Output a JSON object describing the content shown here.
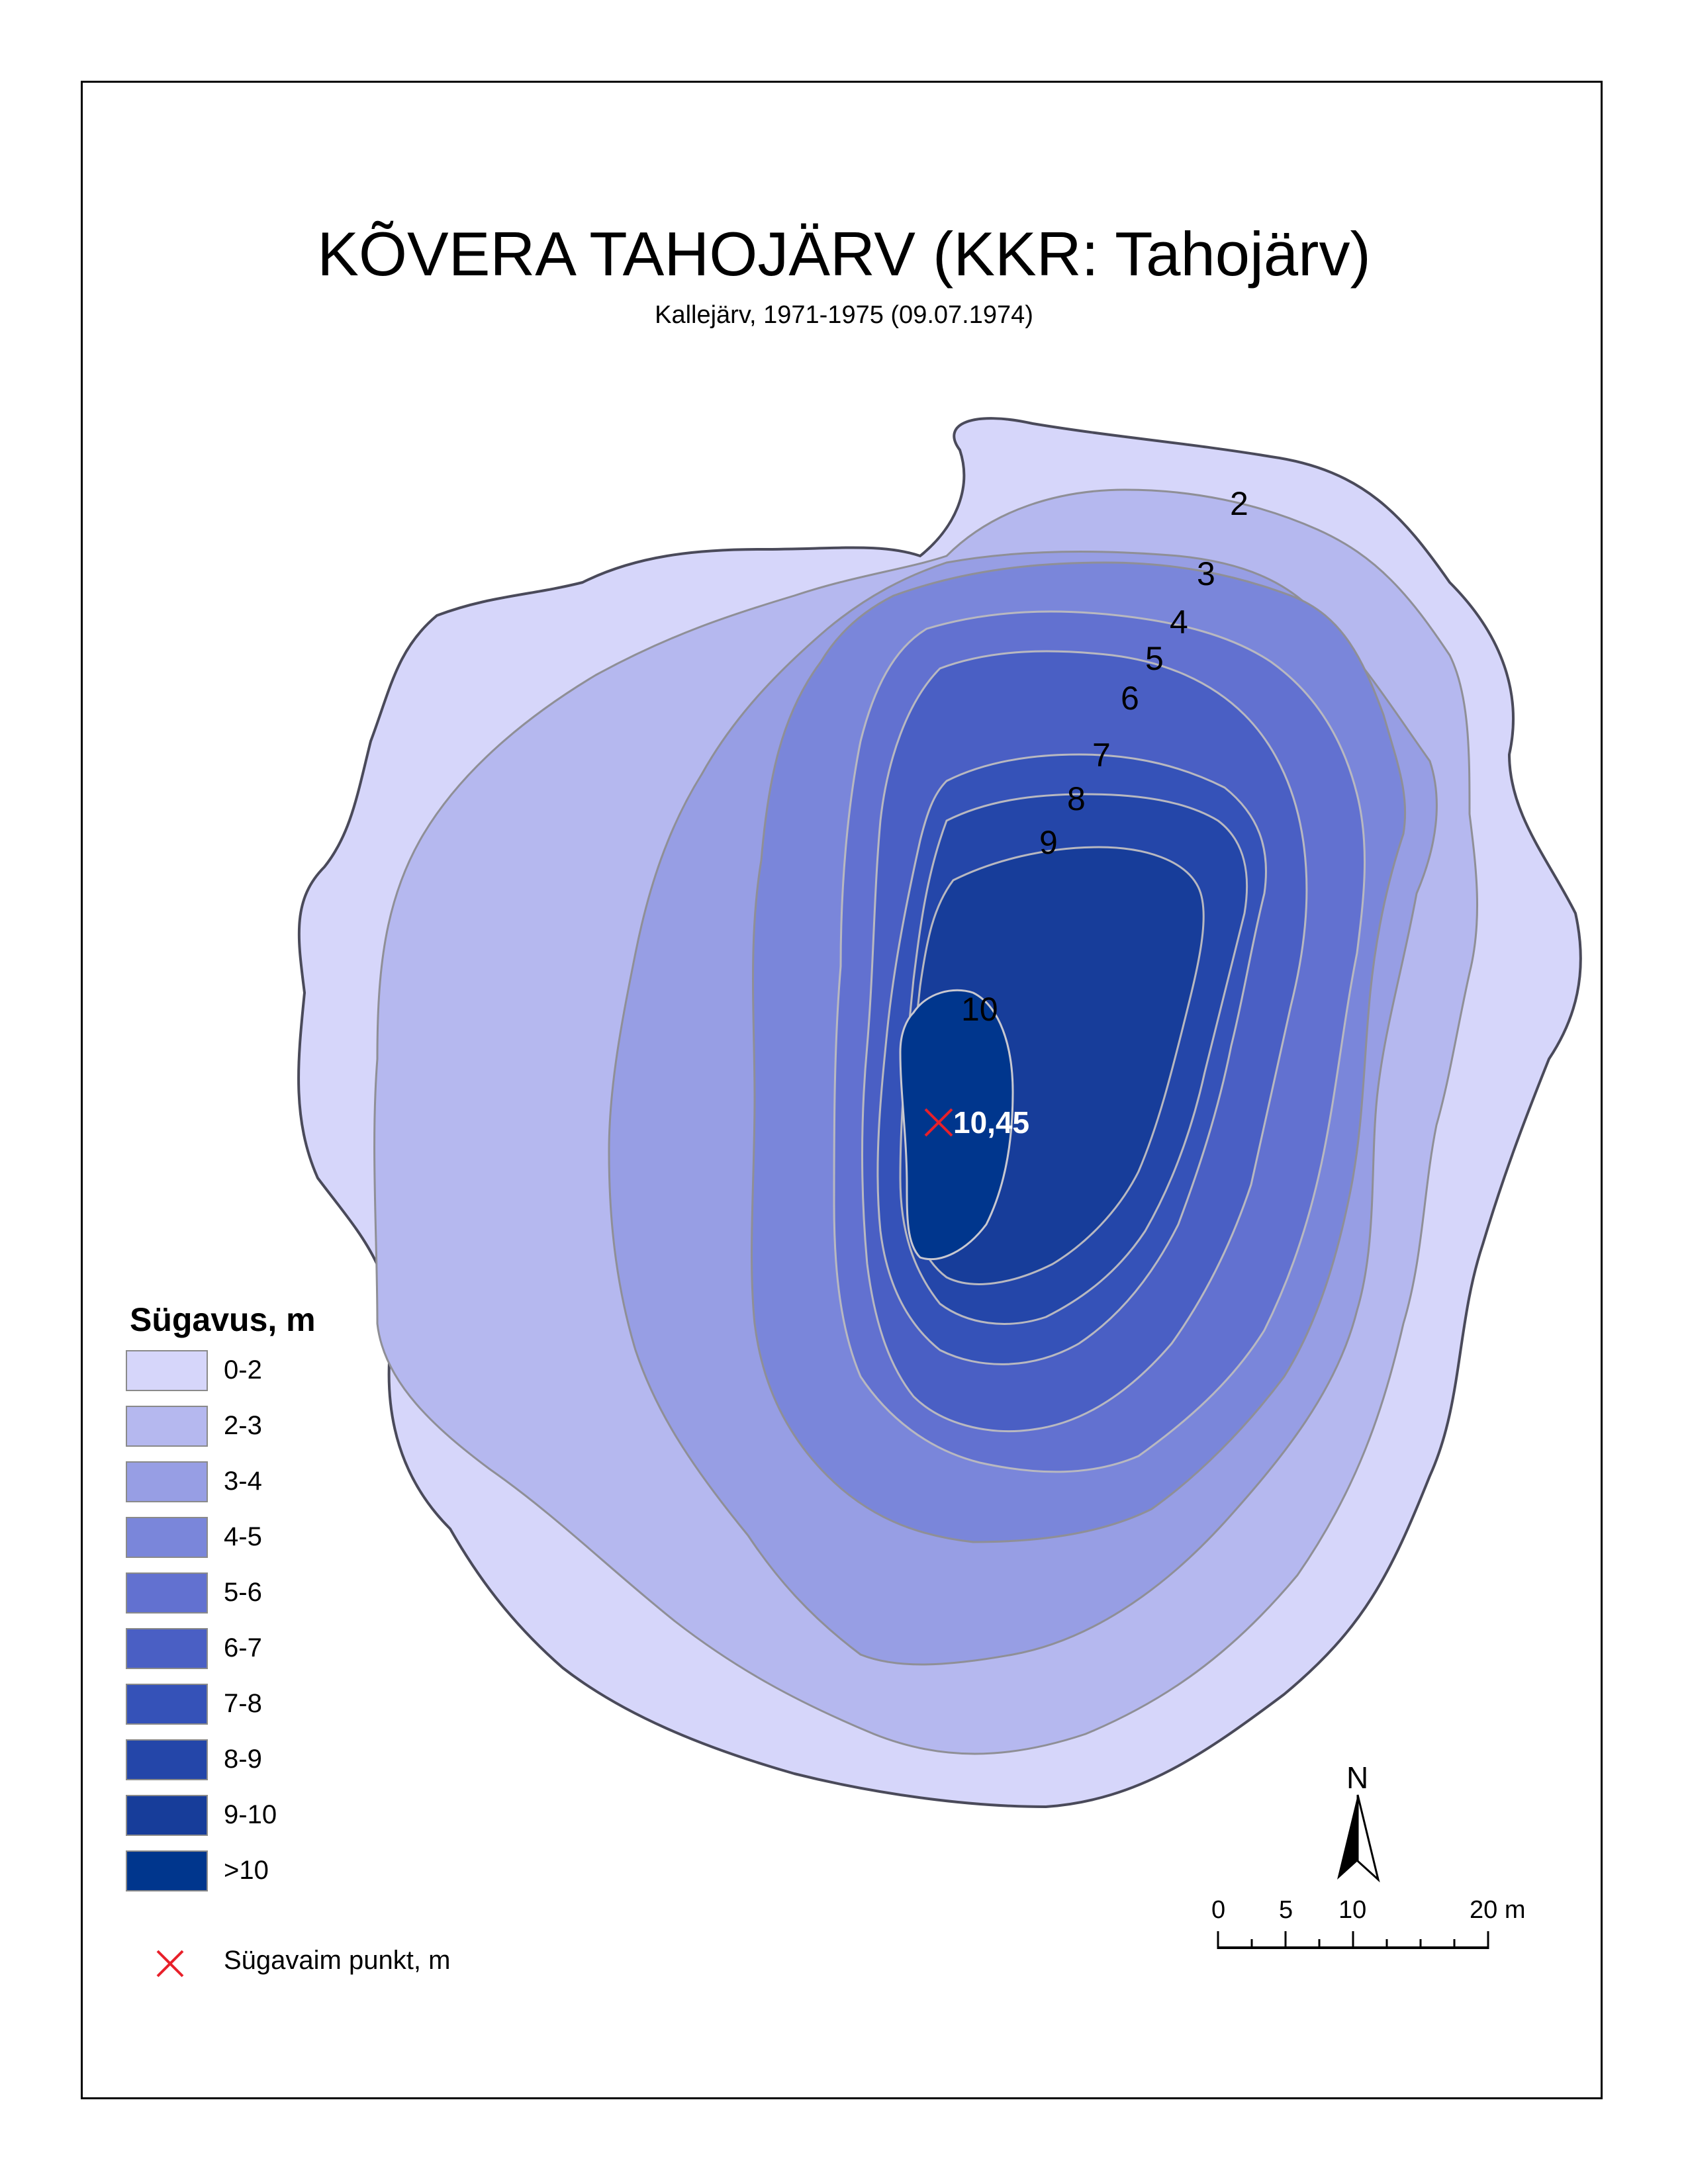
{
  "map": {
    "title": "KÕVERA TAHOJÄRV (KKR: Tahojärv)",
    "subtitle": "Kallejärv, 1971-1975 (09.07.1974)"
  },
  "contours": {
    "labels": [
      "2",
      "3",
      "4",
      "5",
      "6",
      "7",
      "8",
      "9",
      "10"
    ]
  },
  "deepest_point": {
    "value": "10,45",
    "marker_color": "#e8202a"
  },
  "legend": {
    "title": "Sügavus, m",
    "classes": [
      {
        "label": "0-2",
        "color": "#d6d6fa"
      },
      {
        "label": "2-3",
        "color": "#b5b8ef"
      },
      {
        "label": "3-4",
        "color": "#979ee4"
      },
      {
        "label": "4-5",
        "color": "#7a86da"
      },
      {
        "label": "5-6",
        "color": "#6271d0"
      },
      {
        "label": "6-7",
        "color": "#4a5fc4"
      },
      {
        "label": "7-8",
        "color": "#3552b8"
      },
      {
        "label": "8-9",
        "color": "#2446a9"
      },
      {
        "label": "9-10",
        "color": "#173d9a"
      },
      {
        "label": ">10",
        "color": "#00368d"
      }
    ],
    "deepest_label": "Sügavaim punkt, m"
  },
  "north_arrow": {
    "letter": "N"
  },
  "scale_bar": {
    "labels": [
      "0",
      "5",
      "10",
      "20 m"
    ]
  }
}
